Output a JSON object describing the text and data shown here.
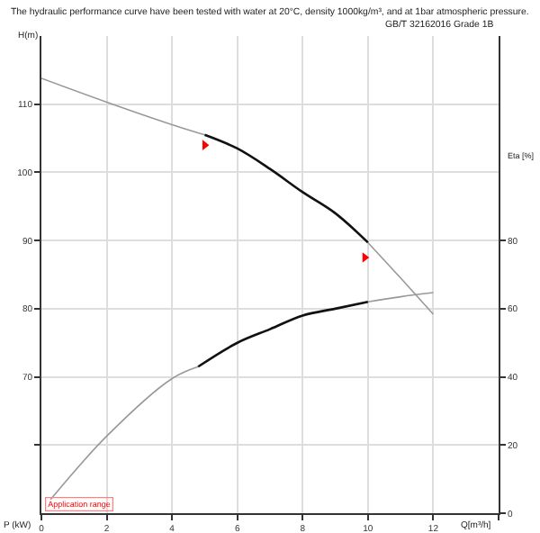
{
  "chart_data": {
    "type": "line",
    "title": "The hydraulic performance curve have been tested with water at 20°C, density 1000kg/m³, and at 1bar atmospheric pressure.",
    "subtitle": "GB/T 32162016 Grade 1B",
    "xlabel": "Q[m³/h]",
    "ylabel": "H(m)",
    "y2label": "Eta [%]",
    "annotations": [
      "P (kW)",
      "Application range"
    ],
    "xlim": [
      0,
      14
    ],
    "xticks": [
      0,
      2,
      4,
      6,
      8,
      10,
      12,
      {
        "value": 14,
        "label": null
      }
    ],
    "ylim": [
      50,
      120
    ],
    "yticks": [
      {
        "value": 60,
        "label": null
      },
      70,
      80,
      90,
      100,
      110
    ],
    "y2lim": [
      0,
      140
    ],
    "y2ticks": [
      0,
      20,
      40,
      60,
      80
    ],
    "grid": true,
    "marker": "none",
    "line_style": "solid",
    "series": [
      {
        "color": "#999999",
        "x": [
          0,
          2,
          4,
          5
        ],
        "values": [
          113.8,
          110.3,
          107.0,
          105.5
        ]
      },
      {
        "color": "#111111",
        "x": [
          5,
          6,
          7,
          8,
          9,
          10
        ],
        "values": [
          105.5,
          103.5,
          100.5,
          97.1,
          94.0,
          89.7
        ]
      },
      {
        "color": "#999999",
        "x": [
          10,
          11,
          12
        ],
        "values": [
          89.7,
          84.5,
          79.2
        ]
      },
      {
        "color": "#999999",
        "axis": "y2",
        "x": [
          0.28,
          2,
          4,
          4.8
        ],
        "values": [
          4,
          22.6,
          39.5,
          43
        ]
      },
      {
        "color": "#111111",
        "axis": "y2",
        "x": [
          4.8,
          6,
          7,
          8,
          9,
          10
        ],
        "values": [
          43,
          50,
          54,
          58,
          60,
          62
        ]
      },
      {
        "color": "#999999",
        "axis": "y2",
        "x": [
          10,
          11,
          12
        ],
        "values": [
          62,
          63.5,
          64.7
        ]
      },
      {
        "type": "scatter",
        "marker": "triangle",
        "color": "#ff0000",
        "x": [
          5,
          9.9
        ],
        "values": [
          104,
          87.5
        ]
      }
    ]
  }
}
